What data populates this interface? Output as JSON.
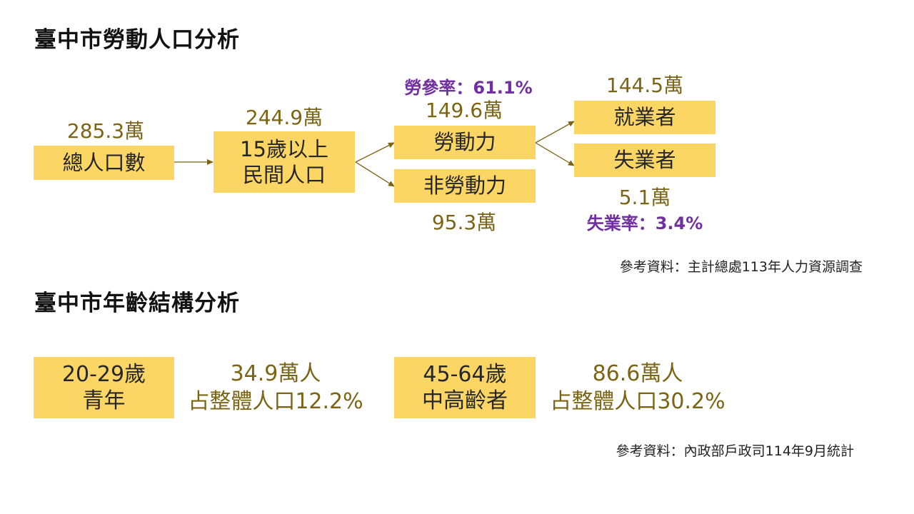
{
  "labor": {
    "title": "臺中市勞動人口分析",
    "total": {
      "label": "總人口數",
      "value": "285.3萬"
    },
    "civilian": {
      "line1": "15歲以上",
      "line2": "民間人口",
      "value": "244.9萬"
    },
    "labor_force": {
      "label": "勞動力",
      "value": "149.6萬",
      "rate": "勞參率：61.1%"
    },
    "non_labor": {
      "label": "非勞動力",
      "value": "95.3萬"
    },
    "employed": {
      "label": "就業者",
      "value": "144.5萬"
    },
    "unemployed": {
      "label": "失業者",
      "value": "5.1萬",
      "rate": "失業率：3.4%"
    },
    "source": "參考資料：主計總處113年人力資源調查"
  },
  "age": {
    "title": "臺中市年齡結構分析",
    "youth": {
      "line1": "20-29歲",
      "line2": "青年",
      "count": "34.9萬人",
      "share": "占整體人口12.2%"
    },
    "middle": {
      "line1": "45-64歲",
      "line2": "中高齡者",
      "count": "86.6萬人",
      "share": "占整體人口30.2%"
    },
    "source": "參考資料：內政部戶政司114年9月統計"
  },
  "colors": {
    "box": "#fcd665",
    "value_text": "#7b6413",
    "rate_text": "#7030a0",
    "arrow": "#7b6413"
  }
}
